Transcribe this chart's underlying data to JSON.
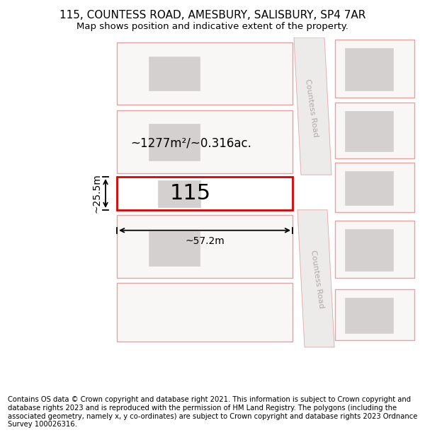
{
  "title_line1": "115, COUNTESS ROAD, AMESBURY, SALISBURY, SP4 7AR",
  "title_line2": "Map shows position and indicative extent of the property.",
  "footer": "Contains OS data © Crown copyright and database right 2021. This information is subject to Crown copyright and database rights 2023 and is reproduced with the permission of HM Land Registry. The polygons (including the associated geometry, namely x, y co-ordinates) are subject to Crown copyright and database rights 2023 Ordnance Survey 100026316.",
  "background_color": "#ffffff",
  "plot_face": "#f9f6f6",
  "road_face": "#edeaea",
  "plot_edge": "#e8a0a0",
  "highlight_edge": "#dd0000",
  "building_fill": "#d4d0d0",
  "road_label_color": "#b0aaaa",
  "road_label": "Countess Road",
  "plot_number": "115",
  "area_label": "~1277m²/~0.316ac.",
  "width_label": "~57.2m",
  "height_label": "~25.5m",
  "title_fontsize": 11,
  "subtitle_fontsize": 9.5,
  "footer_fontsize": 7.2,
  "map_label_fontsize": 12,
  "plot_num_fontsize": 22
}
